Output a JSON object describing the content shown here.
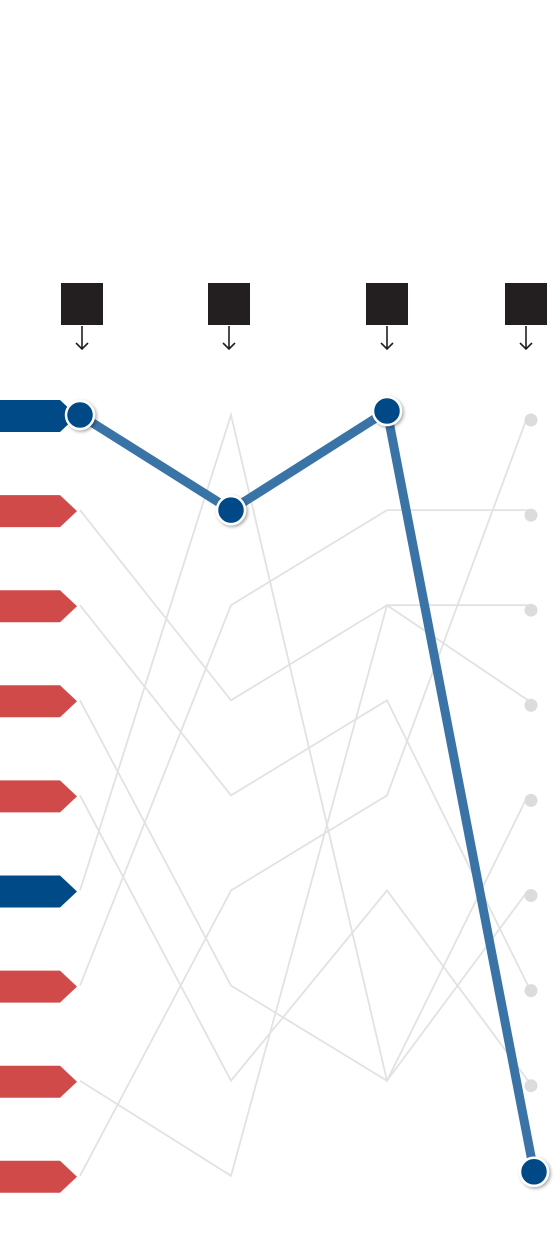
{
  "colors": {
    "background": "#ffffff",
    "header_box": "#231f20",
    "arrow": "#231f20",
    "tag_blue": "#004a87",
    "tag_red": "#d04a4a",
    "highlight_line": "#3a73a6",
    "highlight_node": "#004a87",
    "background_line": "#e2e2e2",
    "background_node": "#dcdcdc"
  },
  "chart_data": {
    "type": "bump",
    "stages": 4,
    "ranks": 9,
    "rows": [
      {
        "tag": "blue",
        "ranks": [
          1,
          2,
          1,
          9
        ],
        "highlight": true
      },
      {
        "tag": "red",
        "ranks": [
          2,
          4,
          3,
          4
        ],
        "highlight": false
      },
      {
        "tag": "red",
        "ranks": [
          3,
          5,
          4,
          7
        ],
        "highlight": false
      },
      {
        "tag": "red",
        "ranks": [
          4,
          7,
          8,
          5
        ],
        "highlight": false
      },
      {
        "tag": "red",
        "ranks": [
          5,
          8,
          6,
          8
        ],
        "highlight": false
      },
      {
        "tag": "blue",
        "ranks": [
          6,
          1,
          8,
          6
        ],
        "highlight": false
      },
      {
        "tag": "red",
        "ranks": [
          7,
          3,
          2,
          2
        ],
        "highlight": false
      },
      {
        "tag": "red",
        "ranks": [
          8,
          9,
          3,
          3
        ],
        "highlight": false
      },
      {
        "tag": "red",
        "ranks": [
          9,
          6,
          5,
          1
        ],
        "highlight": false
      }
    ]
  }
}
